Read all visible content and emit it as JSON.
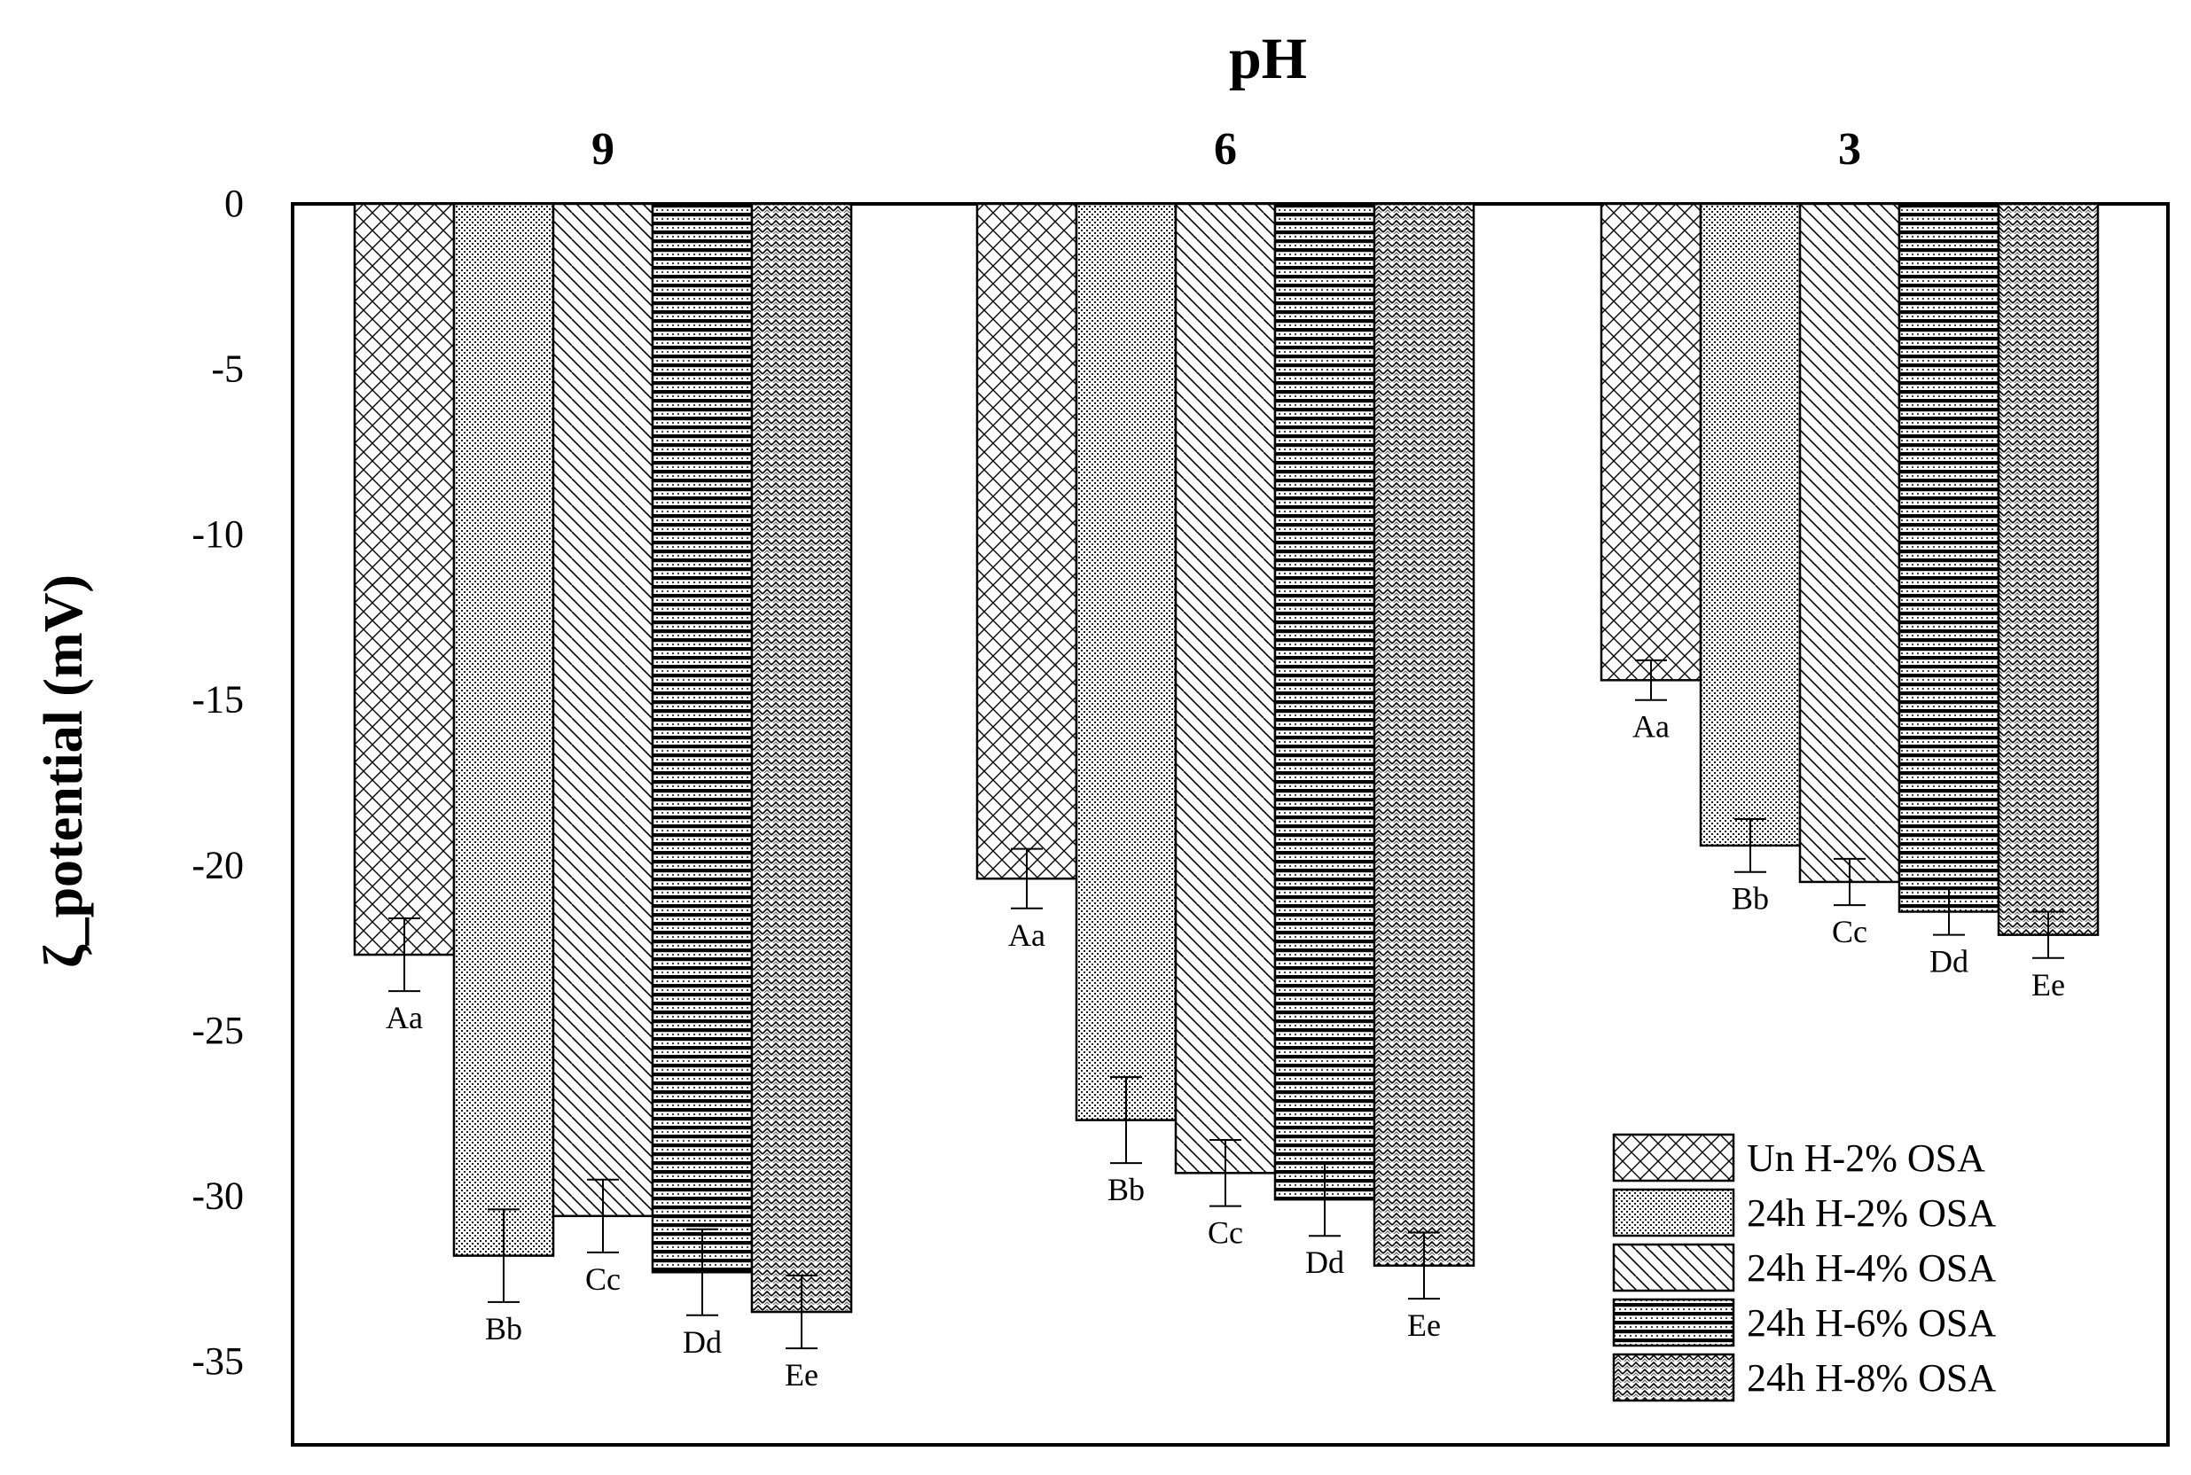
{
  "chart_data": {
    "type": "bar",
    "title": "pH",
    "ylabel": "ζ_potential (mV)",
    "xlabel": "",
    "categories": [
      "9",
      "6",
      "3"
    ],
    "ylim": [
      -37,
      0
    ],
    "yticks": [
      0,
      -5,
      -10,
      -15,
      -20,
      -25,
      -30,
      -35
    ],
    "grid": false,
    "legend_position": "bottom-right",
    "series": [
      {
        "name": "Un H-2% OSA",
        "pattern": "crosshatch",
        "values": [
          -22.7,
          -20.4,
          -14.4
        ],
        "errors": [
          1.1,
          0.9,
          0.6
        ],
        "labels": [
          "Aa",
          "Aa",
          "Aa"
        ]
      },
      {
        "name": "24h H-2% OSA",
        "pattern": "dots",
        "values": [
          -31.8,
          -27.7,
          -19.4
        ],
        "errors": [
          1.4,
          1.3,
          0.8
        ],
        "labels": [
          "Bb",
          "Bb",
          "Bb"
        ]
      },
      {
        "name": "24h H-4% OSA",
        "pattern": "diagonal",
        "values": [
          -30.6,
          -29.3,
          -20.5
        ],
        "errors": [
          1.1,
          1.0,
          0.7
        ],
        "labels": [
          "Cc",
          "Cc",
          "Cc"
        ]
      },
      {
        "name": "24h H-6% OSA",
        "pattern": "horizontal-dots",
        "values": [
          -32.3,
          -30.1,
          -21.4
        ],
        "errors": [
          1.3,
          1.1,
          0.7
        ],
        "labels": [
          "Dd",
          "Dd",
          "Dd"
        ]
      },
      {
        "name": "24h H-8% OSA",
        "pattern": "zigzag",
        "values": [
          -33.5,
          -32.1,
          -22.1
        ],
        "errors": [
          1.1,
          1.0,
          0.7
        ],
        "labels": [
          "Ee",
          "Ee",
          "Ee"
        ]
      }
    ]
  }
}
